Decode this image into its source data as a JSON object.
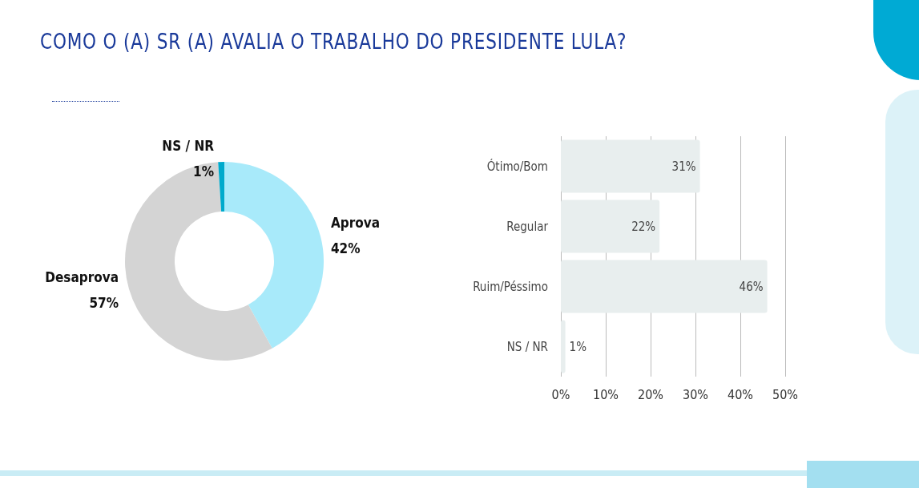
{
  "chart_data": [
    {
      "type": "donut",
      "title": "COMO O (A) SR (A) AVALIA O TRABALHO DO PRESIDENTE LULA?",
      "categories": [
        "Aprova",
        "Desaprova",
        "NS / NR"
      ],
      "values": [
        42,
        57,
        1
      ],
      "colors": [
        "#a8eafa",
        "#d4d4d4",
        "#00aacc"
      ],
      "value_labels": [
        "42%",
        "57%",
        "1%"
      ],
      "legend": false
    },
    {
      "type": "bar",
      "orientation": "horizontal",
      "categories": [
        "Ótimo/Bom",
        "Regular",
        "Ruim/Péssimo",
        "NS / NR"
      ],
      "values": [
        31,
        22,
        46,
        1
      ],
      "color": "#e8eeee",
      "value_labels": [
        "31%",
        "22%",
        "46%",
        "1%"
      ],
      "xlim": [
        0,
        50
      ],
      "xticks": [
        {
          "value": 0,
          "label": "0%"
        },
        {
          "value": 10,
          "label": "10%"
        },
        {
          "value": 20,
          "label": "20%"
        },
        {
          "value": 30,
          "label": "30%"
        },
        {
          "value": 40,
          "label": "40%"
        },
        {
          "value": 50,
          "label": "50%"
        }
      ],
      "grid": "x",
      "legend": false
    }
  ]
}
